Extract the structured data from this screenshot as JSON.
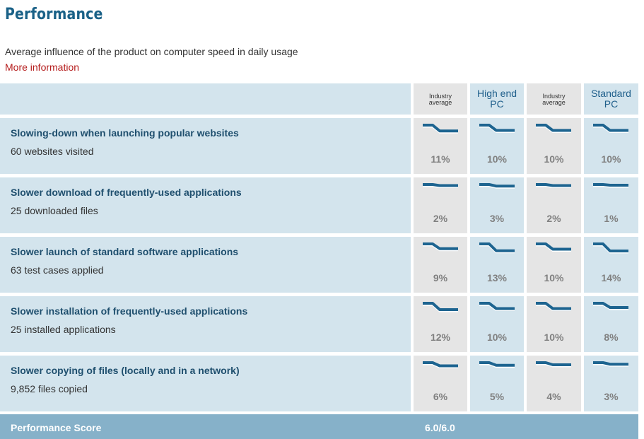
{
  "page": {
    "title": "Performance",
    "subtitle": "Average influence of the product on computer speed in daily usage",
    "more_link": "More information"
  },
  "columns": [
    {
      "line1": "Industry",
      "line2": "average",
      "kind": "industry"
    },
    {
      "line1": "High end",
      "line2": "PC",
      "kind": "pc"
    },
    {
      "line1": "Industry",
      "line2": "average",
      "kind": "industry"
    },
    {
      "line1": "Standard",
      "line2": "PC",
      "kind": "pc"
    }
  ],
  "rows": [
    {
      "title": "Slowing-down when launching popular websites",
      "subtitle": "60 websites visited",
      "values": [
        "11%",
        "10%",
        "10%",
        "10%"
      ],
      "levels": [
        11,
        10,
        10,
        10
      ]
    },
    {
      "title": "Slower download of frequently-used applications",
      "subtitle": "25 downloaded files",
      "values": [
        "2%",
        "3%",
        "2%",
        "1%"
      ],
      "levels": [
        2,
        3,
        2,
        1
      ]
    },
    {
      "title": "Slower launch of standard software applications",
      "subtitle": "63 test cases applied",
      "values": [
        "9%",
        "13%",
        "10%",
        "14%"
      ],
      "levels": [
        9,
        13,
        10,
        14
      ]
    },
    {
      "title": "Slower installation of frequently-used applications",
      "subtitle": "25 installed applications",
      "values": [
        "12%",
        "10%",
        "10%",
        "8%"
      ],
      "levels": [
        12,
        10,
        10,
        8
      ]
    },
    {
      "title": "Slower copying of files (locally and in a network)",
      "subtitle": "9,852 files copied",
      "values": [
        "6%",
        "5%",
        "4%",
        "3%"
      ],
      "levels": [
        6,
        5,
        4,
        3
      ]
    }
  ],
  "score": {
    "label": "Performance Score",
    "value": "6.0/6.0"
  },
  "colors": {
    "accent": "#1a6187",
    "link": "#b51c1c",
    "spark_line": "#1d6490",
    "row_bg": "#d3e4ed",
    "industry_bg": "#e5e5e5",
    "score_bg": "#86b1c9"
  }
}
